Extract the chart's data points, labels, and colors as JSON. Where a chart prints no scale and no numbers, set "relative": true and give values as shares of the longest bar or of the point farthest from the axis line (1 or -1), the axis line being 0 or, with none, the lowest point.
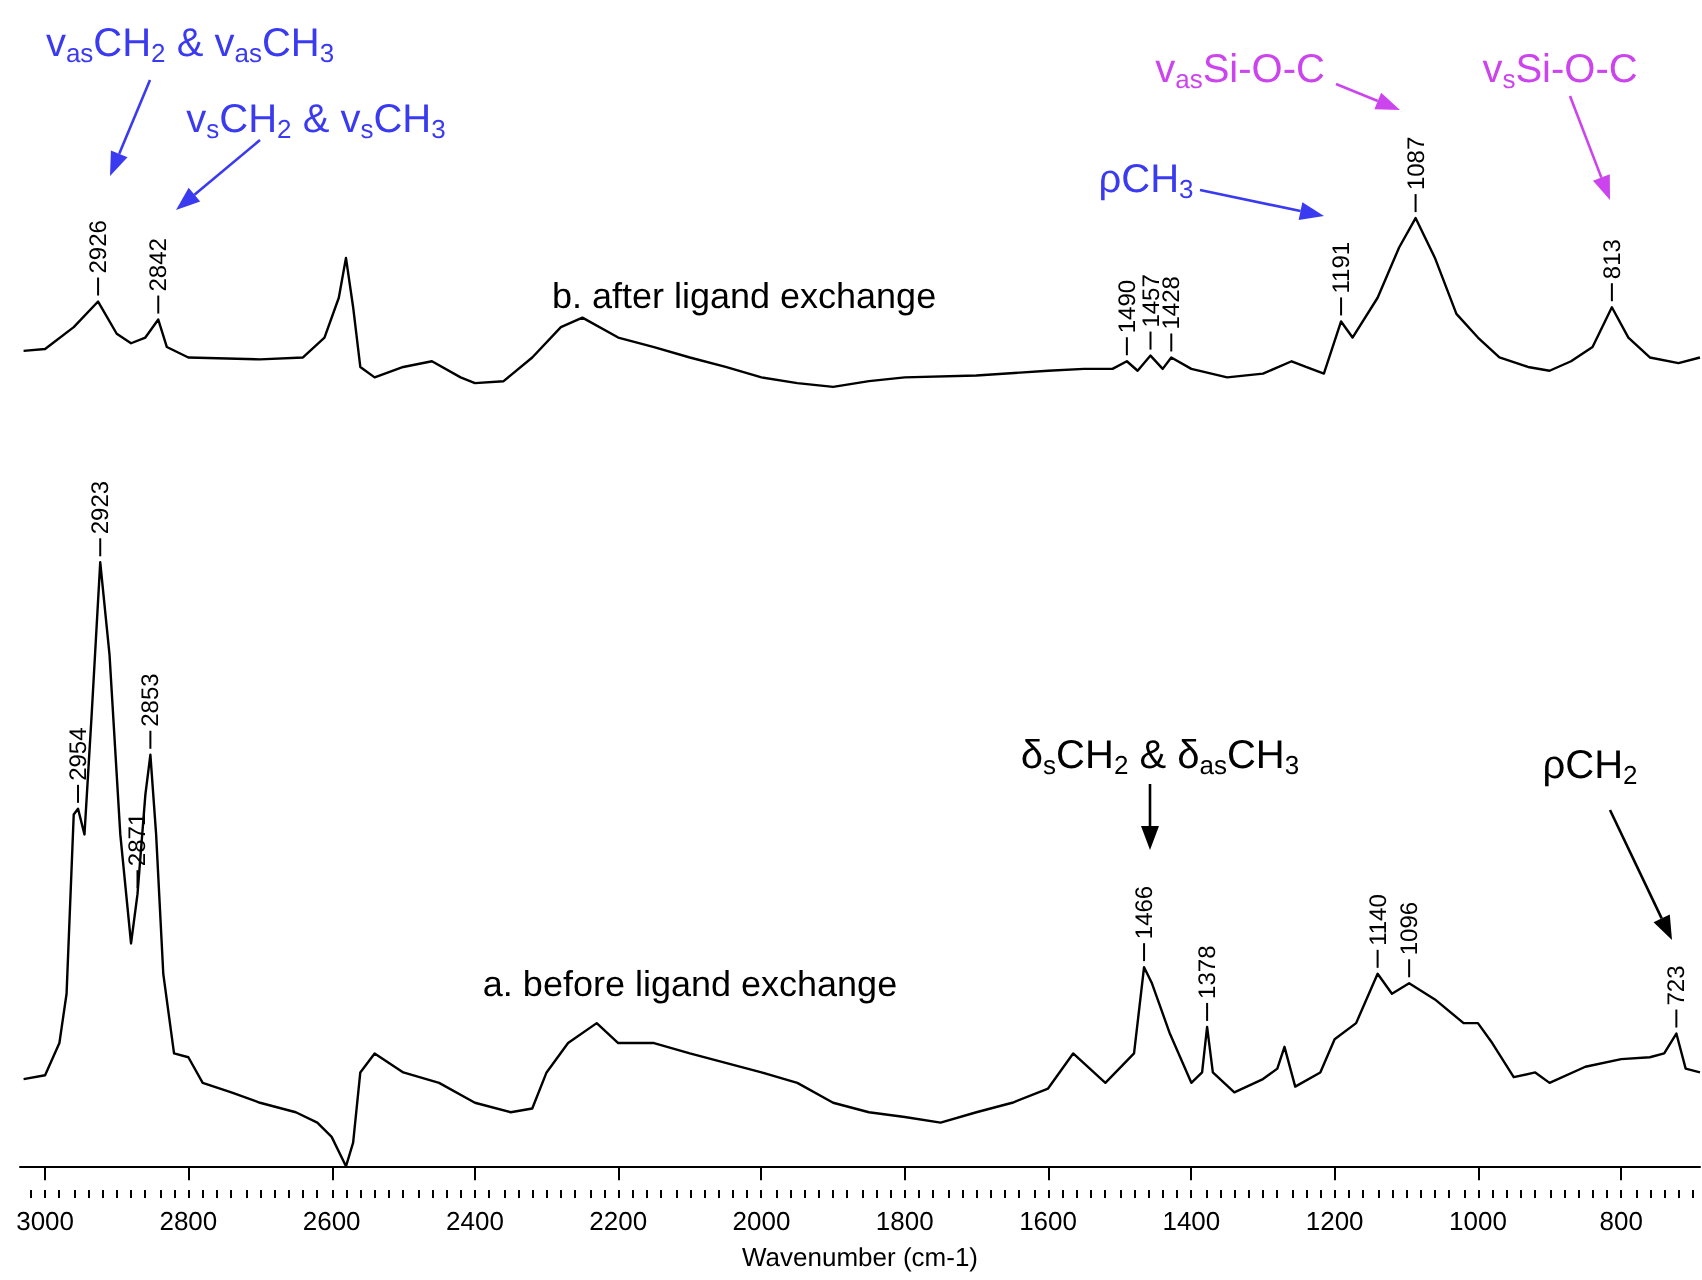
{
  "chart_data": {
    "type": "line",
    "relative": true,
    "xlabel": "Wavenumber (cm-1)",
    "xlim": [
      3035,
      690
    ],
    "xticks": [
      3000,
      2800,
      2600,
      2400,
      2200,
      2000,
      1800,
      1600,
      1400,
      1200,
      1000,
      800
    ],
    "marker": "none",
    "series": [
      {
        "name": "b. after ligand exchange",
        "color": "#000000",
        "x": [
          3030,
          3000,
          2960,
          2926,
          2900,
          2880,
          2860,
          2842,
          2830,
          2800,
          2700,
          2640,
          2610,
          2590,
          2580,
          2570,
          2560,
          2540,
          2500,
          2460,
          2420,
          2400,
          2360,
          2320,
          2280,
          2250,
          2200,
          2150,
          2100,
          2050,
          2000,
          1950,
          1900,
          1850,
          1800,
          1700,
          1600,
          1550,
          1510,
          1490,
          1475,
          1457,
          1440,
          1428,
          1400,
          1350,
          1300,
          1260,
          1240,
          1215,
          1191,
          1175,
          1140,
          1110,
          1087,
          1060,
          1030,
          1000,
          970,
          930,
          900,
          870,
          840,
          813,
          790,
          760,
          720,
          690
        ],
        "values": [
          0.86,
          0.862,
          0.885,
          0.912,
          0.878,
          0.868,
          0.874,
          0.893,
          0.864,
          0.853,
          0.851,
          0.853,
          0.874,
          0.916,
          0.958,
          0.906,
          0.843,
          0.832,
          0.843,
          0.849,
          0.832,
          0.826,
          0.828,
          0.853,
          0.885,
          0.895,
          0.874,
          0.864,
          0.853,
          0.843,
          0.832,
          0.826,
          0.822,
          0.828,
          0.832,
          0.834,
          0.839,
          0.841,
          0.841,
          0.849,
          0.839,
          0.855,
          0.841,
          0.853,
          0.841,
          0.832,
          0.836,
          0.849,
          0.843,
          0.836,
          0.891,
          0.874,
          0.916,
          0.969,
          1,
          0.958,
          0.899,
          0.874,
          0.853,
          0.843,
          0.839,
          0.849,
          0.864,
          0.906,
          0.874,
          0.853,
          0.847,
          0.853
        ]
      },
      {
        "name": "a. before ligand exchange",
        "color": "#000000",
        "x": [
          3030,
          3000,
          2980,
          2970,
          2960,
          2954,
          2945,
          2935,
          2923,
          2910,
          2895,
          2880,
          2871,
          2860,
          2853,
          2845,
          2835,
          2820,
          2800,
          2780,
          2740,
          2700,
          2650,
          2620,
          2600,
          2580,
          2570,
          2560,
          2540,
          2500,
          2450,
          2400,
          2350,
          2320,
          2300,
          2270,
          2230,
          2200,
          2150,
          2100,
          2050,
          2000,
          1950,
          1900,
          1850,
          1800,
          1750,
          1700,
          1650,
          1600,
          1565,
          1520,
          1480,
          1466,
          1455,
          1430,
          1400,
          1385,
          1378,
          1370,
          1340,
          1300,
          1280,
          1270,
          1255,
          1220,
          1200,
          1170,
          1140,
          1120,
          1096,
          1060,
          1020,
          1000,
          980,
          950,
          920,
          900,
          850,
          800,
          760,
          740,
          723,
          710,
          690
        ],
        "values": [
          0.092,
          0.096,
          0.13,
          0.182,
          0.371,
          0.377,
          0.35,
          0.476,
          0.637,
          0.539,
          0.35,
          0.235,
          0.287,
          0.392,
          0.434,
          0.35,
          0.203,
          0.119,
          0.115,
          0.088,
          0.078,
          0.067,
          0.057,
          0.046,
          0.031,
          0,
          0.025,
          0.099,
          0.119,
          0.099,
          0.088,
          0.067,
          0.057,
          0.061,
          0.099,
          0.13,
          0.151,
          0.13,
          0.13,
          0.119,
          0.109,
          0.099,
          0.088,
          0.067,
          0.057,
          0.052,
          0.046,
          0.057,
          0.067,
          0.082,
          0.119,
          0.088,
          0.119,
          0.21,
          0.193,
          0.14,
          0.088,
          0.099,
          0.147,
          0.099,
          0.078,
          0.092,
          0.103,
          0.126,
          0.084,
          0.099,
          0.134,
          0.151,
          0.203,
          0.182,
          0.193,
          0.176,
          0.151,
          0.151,
          0.13,
          0.094,
          0.099,
          0.088,
          0.105,
          0.113,
          0.115,
          0.119,
          0.14,
          0.103,
          0.099
        ]
      }
    ],
    "annotations": [
      "v$_{as}$CH$_{2}$ & v$_{as}$CH$_{3}$",
      "v$_{s}$CH$_{2}$ & v$_{s}$CH$_{3}$",
      "ρCH$_{3}$",
      "v$_{as}$Si-O-C",
      "v$_{s}$Si-O-C",
      "δ$_{s}$CH$_{2}$ & δ$_{as}$CH$_{3}$",
      "ρCH$_{2}$",
      {
        "text": "2926",
        "x": 2926,
        "y": 0.912
      },
      {
        "text": "2842",
        "x": 2842,
        "y": 0.893
      },
      {
        "text": "1490",
        "x": 1490,
        "y": 0.849
      },
      {
        "text": "1457",
        "x": 1457,
        "y": 0.855
      },
      {
        "text": "1428",
        "x": 1428,
        "y": 0.853
      },
      {
        "text": "1191",
        "x": 1191,
        "y": 0.891
      },
      {
        "text": "1087",
        "x": 1087,
        "y": 1
      },
      {
        "text": "813",
        "x": 813,
        "y": 0.906
      },
      {
        "text": "2954",
        "x": 2954,
        "y": 0.377
      },
      {
        "text": "2923",
        "x": 2923,
        "y": 0.637
      },
      {
        "text": "2871",
        "x": 2871,
        "y": 0.287
      },
      {
        "text": "2853",
        "x": 2853,
        "y": 0.434
      },
      {
        "text": "1466",
        "x": 1466,
        "y": 0.21
      },
      {
        "text": "1378",
        "x": 1378,
        "y": 0.147
      },
      {
        "text": "1140",
        "x": 1140,
        "y": 0.203
      },
      {
        "text": "1096",
        "x": 1096,
        "y": 0.193
      },
      {
        "text": "723",
        "x": 723,
        "y": 0.14
      }
    ]
  }
}
